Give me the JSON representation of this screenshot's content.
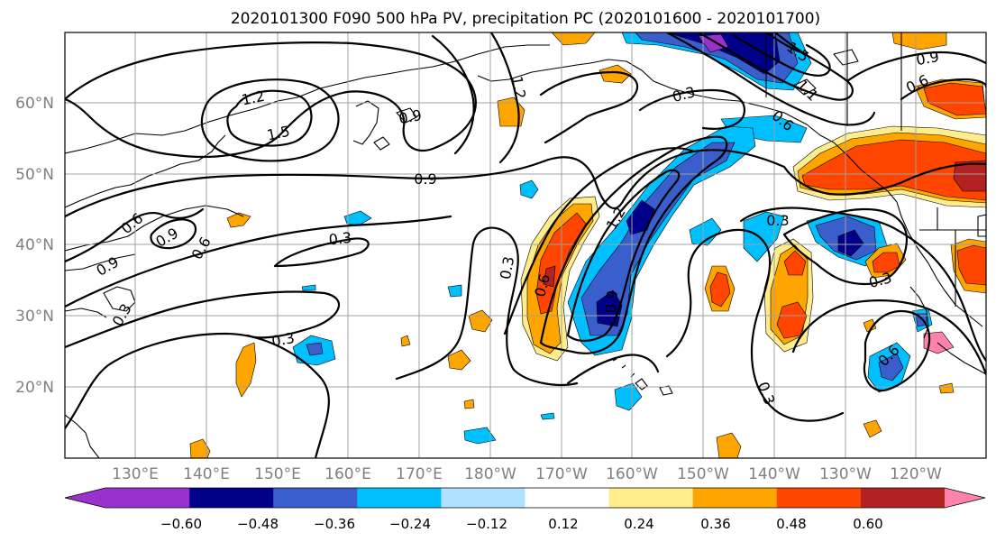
{
  "title": "2020101300 F090 500 hPa PV, precipitation PC (2020101600 - 2020101700)",
  "map": {
    "lon_labels": [
      "130°E",
      "140°E",
      "150°E",
      "160°E",
      "170°E",
      "180°W",
      "170°W",
      "160°W",
      "150°W",
      "140°W",
      "130°W",
      "120°W"
    ],
    "lat_labels": [
      "60°N",
      "50°N",
      "40°N",
      "30°N",
      "20°N"
    ],
    "contour_labels": [
      "1.2",
      "1.5",
      "0.9",
      "1.2",
      "0.3",
      "1.5",
      "0.9",
      "0.6",
      "0.9",
      "0.6",
      "0.9",
      "0.3",
      "0.3",
      "0.3",
      "0.6",
      "1.2",
      "0.9",
      "0.3",
      "0.3",
      "0.6",
      "0.3",
      "0.3",
      "0.6",
      "0.9",
      "0.6",
      "1.1"
    ]
  },
  "colorbar": {
    "tick_labels": [
      "−0.60",
      "−0.48",
      "−0.36",
      "−0.24",
      "−0.12",
      "0.12",
      "0.24",
      "0.36",
      "0.48",
      "0.60"
    ],
    "colors": [
      "#9932cc",
      "#00008b",
      "#3a5fcd",
      "#00bfff",
      "#b0e2ff",
      "#ffffff",
      "#ffec8b",
      "#ffa500",
      "#ff4500",
      "#b22222",
      "#ff82ab"
    ]
  }
}
